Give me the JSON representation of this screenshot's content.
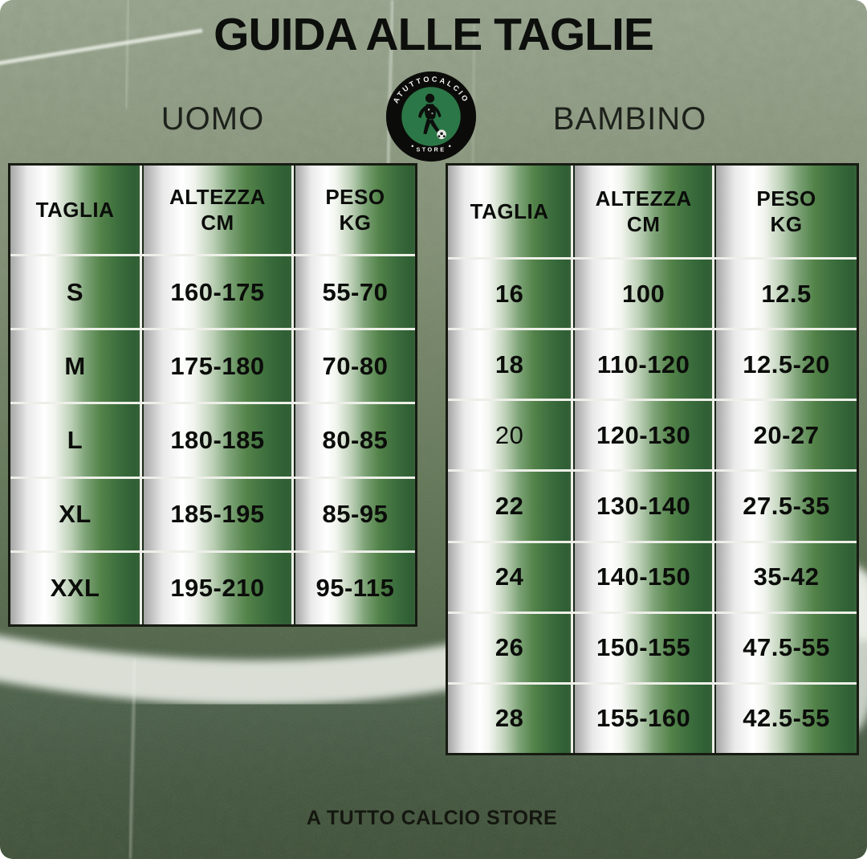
{
  "title": "GUIDA ALLE TAGLIE",
  "footer": "A TUTTO CALCIO STORE",
  "logo": {
    "arc_text": "ATUTTOCALCIO",
    "bottom_text": "STORE"
  },
  "sections": {
    "uomo": {
      "label": "UOMO"
    },
    "bambino": {
      "label": "BAMBINO"
    }
  },
  "tables": {
    "uomo": {
      "headers": [
        [
          "TAGLIA"
        ],
        [
          "ALTEZZA",
          "CM"
        ],
        [
          "PESO",
          "KG"
        ]
      ],
      "rows": [
        [
          "S",
          "160-175",
          "55-70"
        ],
        [
          "M",
          "175-180",
          "70-80"
        ],
        [
          "L",
          "180-185",
          "80-85"
        ],
        [
          "XL",
          "185-195",
          "85-95"
        ],
        [
          "XXL",
          "195-210",
          "95-115"
        ]
      ]
    },
    "bambino": {
      "headers": [
        [
          "TAGLIA"
        ],
        [
          "ALTEZZA",
          "CM"
        ],
        [
          "PESO",
          "KG"
        ]
      ],
      "rows": [
        [
          "16",
          "100",
          "12.5"
        ],
        [
          "18",
          "110-120",
          "12.5-20"
        ],
        [
          "20",
          "120-130",
          "20-27"
        ],
        [
          "22",
          "130-140",
          "27.5-35"
        ],
        [
          "24",
          "140-150",
          "35-42"
        ],
        [
          "26",
          "150-155",
          "47.5-55"
        ],
        [
          "28",
          "155-160",
          "42.5-55"
        ]
      ]
    }
  },
  "colors": {
    "cell_green": "#356038",
    "cell_white": "#ffffff",
    "logo_green": "#2c7747",
    "field_light": "#8b977f",
    "field_dark": "#35462f",
    "text": "#0d0f0c"
  }
}
